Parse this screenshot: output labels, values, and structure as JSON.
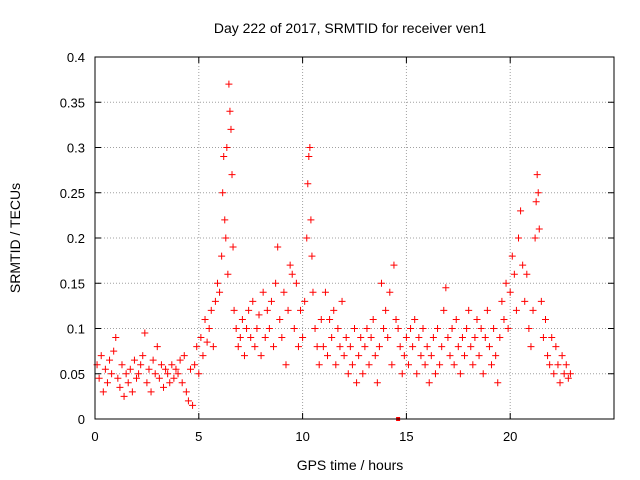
{
  "chart_data": {
    "type": "scatter",
    "title": "Day 222 of 2017, SRMTID for receiver ven1",
    "xlabel": "GPS time / hours",
    "ylabel": "SRMTID / TECUs",
    "xlim": [
      0,
      25
    ],
    "ylim": [
      0,
      0.4
    ],
    "xticks": [
      0,
      5,
      10,
      15,
      20
    ],
    "xtick_labels": [
      "0",
      "5",
      "10",
      "15",
      "20"
    ],
    "yticks": [
      0,
      0.05,
      0.1,
      0.15,
      0.2,
      0.25,
      0.3,
      0.35,
      0.4
    ],
    "ytick_labels": [
      "0",
      "0.05",
      "0.1",
      "0.15",
      "0.2",
      "0.25",
      "0.3",
      "0.35",
      "0.4"
    ],
    "grid": true,
    "marker": "+",
    "color": "#ff0000",
    "series": [
      {
        "name": "SRMTID",
        "points": [
          [
            0.1,
            0.06
          ],
          [
            0.2,
            0.045
          ],
          [
            0.3,
            0.07
          ],
          [
            0.4,
            0.03
          ],
          [
            0.5,
            0.055
          ],
          [
            0.6,
            0.04
          ],
          [
            0.7,
            0.065
          ],
          [
            0.8,
            0.05
          ],
          [
            0.9,
            0.075
          ],
          [
            1.0,
            0.09
          ],
          [
            1.1,
            0.045
          ],
          [
            1.2,
            0.035
          ],
          [
            1.3,
            0.06
          ],
          [
            1.4,
            0.025
          ],
          [
            1.5,
            0.05
          ],
          [
            1.6,
            0.04
          ],
          [
            1.7,
            0.055
          ],
          [
            1.8,
            0.03
          ],
          [
            1.9,
            0.065
          ],
          [
            2.0,
            0.045
          ],
          [
            2.1,
            0.05
          ],
          [
            2.2,
            0.06
          ],
          [
            2.3,
            0.07
          ],
          [
            2.4,
            0.095
          ],
          [
            2.5,
            0.04
          ],
          [
            2.6,
            0.055
          ],
          [
            2.7,
            0.03
          ],
          [
            2.8,
            0.065
          ],
          [
            2.9,
            0.05
          ],
          [
            3.0,
            0.08
          ],
          [
            3.1,
            0.045
          ],
          [
            3.2,
            0.06
          ],
          [
            3.3,
            0.035
          ],
          [
            3.4,
            0.055
          ],
          [
            3.5,
            0.05
          ],
          [
            3.6,
            0.04
          ],
          [
            3.7,
            0.06
          ],
          [
            3.8,
            0.045
          ],
          [
            3.9,
            0.055
          ],
          [
            4.0,
            0.05
          ],
          [
            4.1,
            0.065
          ],
          [
            4.2,
            0.04
          ],
          [
            4.3,
            0.07
          ],
          [
            4.4,
            0.03
          ],
          [
            4.5,
            0.02
          ],
          [
            4.6,
            0.055
          ],
          [
            4.7,
            0.015
          ],
          [
            4.8,
            0.06
          ],
          [
            4.9,
            0.08
          ],
          [
            5.0,
            0.05
          ],
          [
            5.1,
            0.09
          ],
          [
            5.2,
            0.07
          ],
          [
            5.3,
            0.11
          ],
          [
            5.4,
            0.085
          ],
          [
            5.5,
            0.1
          ],
          [
            5.6,
            0.12
          ],
          [
            5.7,
            0.08
          ],
          [
            5.8,
            0.13
          ],
          [
            5.9,
            0.15
          ],
          [
            6.0,
            0.14
          ],
          [
            6.1,
            0.18
          ],
          [
            6.15,
            0.25
          ],
          [
            6.2,
            0.29
          ],
          [
            6.25,
            0.22
          ],
          [
            6.3,
            0.2
          ],
          [
            6.35,
            0.3
          ],
          [
            6.4,
            0.16
          ],
          [
            6.45,
            0.37
          ],
          [
            6.5,
            0.34
          ],
          [
            6.55,
            0.32
          ],
          [
            6.6,
            0.27
          ],
          [
            6.65,
            0.19
          ],
          [
            6.7,
            0.12
          ],
          [
            6.8,
            0.1
          ],
          [
            6.9,
            0.08
          ],
          [
            7.0,
            0.09
          ],
          [
            7.1,
            0.11
          ],
          [
            7.2,
            0.07
          ],
          [
            7.3,
            0.1
          ],
          [
            7.4,
            0.12
          ],
          [
            7.5,
            0.09
          ],
          [
            7.6,
            0.13
          ],
          [
            7.7,
            0.08
          ],
          [
            7.8,
            0.1
          ],
          [
            7.9,
            0.115
          ],
          [
            8.0,
            0.07
          ],
          [
            8.1,
            0.14
          ],
          [
            8.2,
            0.09
          ],
          [
            8.3,
            0.12
          ],
          [
            8.4,
            0.1
          ],
          [
            8.5,
            0.13
          ],
          [
            8.6,
            0.08
          ],
          [
            8.7,
            0.15
          ],
          [
            8.8,
            0.19
          ],
          [
            8.9,
            0.11
          ],
          [
            9.0,
            0.09
          ],
          [
            9.1,
            0.14
          ],
          [
            9.2,
            0.06
          ],
          [
            9.3,
            0.12
          ],
          [
            9.4,
            0.17
          ],
          [
            9.5,
            0.16
          ],
          [
            9.6,
            0.1
          ],
          [
            9.7,
            0.15
          ],
          [
            9.8,
            0.08
          ],
          [
            9.9,
            0.12
          ],
          [
            10.0,
            0.09
          ],
          [
            10.1,
            0.13
          ],
          [
            10.2,
            0.2
          ],
          [
            10.25,
            0.26
          ],
          [
            10.3,
            0.29
          ],
          [
            10.35,
            0.3
          ],
          [
            10.4,
            0.22
          ],
          [
            10.45,
            0.18
          ],
          [
            10.5,
            0.14
          ],
          [
            10.6,
            0.1
          ],
          [
            10.7,
            0.08
          ],
          [
            10.8,
            0.06
          ],
          [
            10.9,
            0.11
          ],
          [
            11.0,
            0.08
          ],
          [
            11.1,
            0.14
          ],
          [
            11.2,
            0.07
          ],
          [
            11.3,
            0.11
          ],
          [
            11.4,
            0.09
          ],
          [
            11.5,
            0.12
          ],
          [
            11.6,
            0.06
          ],
          [
            11.7,
            0.1
          ],
          [
            11.8,
            0.08
          ],
          [
            11.9,
            0.13
          ],
          [
            12.0,
            0.07
          ],
          [
            12.1,
            0.09
          ],
          [
            12.2,
            0.05
          ],
          [
            12.3,
            0.08
          ],
          [
            12.4,
            0.06
          ],
          [
            12.5,
            0.1
          ],
          [
            12.6,
            0.04
          ],
          [
            12.7,
            0.07
          ],
          [
            12.8,
            0.09
          ],
          [
            12.9,
            0.05
          ],
          [
            13.0,
            0.08
          ],
          [
            13.1,
            0.1
          ],
          [
            13.2,
            0.06
          ],
          [
            13.3,
            0.09
          ],
          [
            13.4,
            0.11
          ],
          [
            13.5,
            0.07
          ],
          [
            13.6,
            0.04
          ],
          [
            13.7,
            0.08
          ],
          [
            13.8,
            0.15
          ],
          [
            13.9,
            0.1
          ],
          [
            14.0,
            0.12
          ],
          [
            14.1,
            0.09
          ],
          [
            14.2,
            0.14
          ],
          [
            14.3,
            0.06
          ],
          [
            14.4,
            0.17
          ],
          [
            14.5,
            0.11
          ],
          [
            14.6,
            0.1
          ],
          [
            14.7,
            0.08
          ],
          [
            14.8,
            0.05
          ],
          [
            14.9,
            0.07
          ],
          [
            15.0,
            0.09
          ],
          [
            15.1,
            0.06
          ],
          [
            15.2,
            0.1
          ],
          [
            15.3,
            0.08
          ],
          [
            15.4,
            0.11
          ],
          [
            15.5,
            0.05
          ],
          [
            15.6,
            0.09
          ],
          [
            15.7,
            0.07
          ],
          [
            15.8,
            0.1
          ],
          [
            15.9,
            0.06
          ],
          [
            16.0,
            0.08
          ],
          [
            16.1,
            0.04
          ],
          [
            16.2,
            0.07
          ],
          [
            16.3,
            0.09
          ],
          [
            16.4,
            0.05
          ],
          [
            16.5,
            0.1
          ],
          [
            16.6,
            0.06
          ],
          [
            16.7,
            0.08
          ],
          [
            16.8,
            0.12
          ],
          [
            16.9,
            0.145
          ],
          [
            17.0,
            0.09
          ],
          [
            17.1,
            0.07
          ],
          [
            17.2,
            0.1
          ],
          [
            17.3,
            0.06
          ],
          [
            17.4,
            0.11
          ],
          [
            17.5,
            0.08
          ],
          [
            17.6,
            0.05
          ],
          [
            17.7,
            0.09
          ],
          [
            17.8,
            0.07
          ],
          [
            17.9,
            0.1
          ],
          [
            18.0,
            0.12
          ],
          [
            18.1,
            0.08
          ],
          [
            18.2,
            0.06
          ],
          [
            18.3,
            0.09
          ],
          [
            18.4,
            0.11
          ],
          [
            18.5,
            0.07
          ],
          [
            18.6,
            0.1
          ],
          [
            18.7,
            0.05
          ],
          [
            18.8,
            0.09
          ],
          [
            18.9,
            0.12
          ],
          [
            19.0,
            0.08
          ],
          [
            19.1,
            0.06
          ],
          [
            19.2,
            0.1
          ],
          [
            19.3,
            0.07
          ],
          [
            19.4,
            0.04
          ],
          [
            19.5,
            0.09
          ],
          [
            19.6,
            0.13
          ],
          [
            19.7,
            0.11
          ],
          [
            19.8,
            0.15
          ],
          [
            19.9,
            0.1
          ],
          [
            20.0,
            0.14
          ],
          [
            20.1,
            0.18
          ],
          [
            20.2,
            0.16
          ],
          [
            20.3,
            0.12
          ],
          [
            20.4,
            0.2
          ],
          [
            20.5,
            0.23
          ],
          [
            20.6,
            0.17
          ],
          [
            20.7,
            0.13
          ],
          [
            20.8,
            0.16
          ],
          [
            20.9,
            0.1
          ],
          [
            21.0,
            0.08
          ],
          [
            21.1,
            0.12
          ],
          [
            21.2,
            0.2
          ],
          [
            21.25,
            0.24
          ],
          [
            21.3,
            0.27
          ],
          [
            21.35,
            0.25
          ],
          [
            21.4,
            0.21
          ],
          [
            21.5,
            0.13
          ],
          [
            21.6,
            0.09
          ],
          [
            21.7,
            0.11
          ],
          [
            21.8,
            0.07
          ],
          [
            21.9,
            0.06
          ],
          [
            22.0,
            0.09
          ],
          [
            22.1,
            0.05
          ],
          [
            22.2,
            0.08
          ],
          [
            22.3,
            0.06
          ],
          [
            22.4,
            0.04
          ],
          [
            22.5,
            0.07
          ],
          [
            22.6,
            0.05
          ],
          [
            22.7,
            0.06
          ],
          [
            22.8,
            0.045
          ],
          [
            22.9,
            0.05
          ]
        ]
      }
    ],
    "markers": [
      {
        "x": 14.6,
        "y": 0,
        "shape": "square"
      }
    ]
  }
}
